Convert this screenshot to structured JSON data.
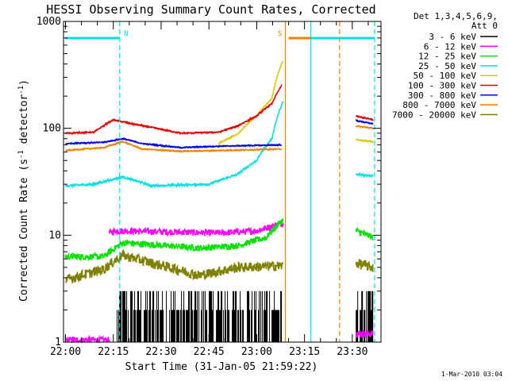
{
  "chart_data": {
    "type": "line",
    "title": "HESSI Observing Summary Count Rates, Corrected",
    "xlabel": "Start Time (31-Jan-05 21:59:22)",
    "ylabel_parts": [
      "Corrected Count Rate (s",
      "-1",
      " detector",
      "-1",
      ")"
    ],
    "footer": "1-Mar-2010 03:04",
    "y_scale": "log",
    "ylim": [
      1,
      1000
    ],
    "xlim": [
      "21:59:22",
      "23:39:00"
    ],
    "x_ticks": [
      "22:00",
      "22:15",
      "22:30",
      "22:45",
      "23:00",
      "23:15",
      "23:30"
    ],
    "y_ticks": [
      "1",
      "10",
      "100",
      "1000"
    ],
    "legend": {
      "header": [
        "Det 1,3,4,5,6,9,",
        "Att 0"
      ],
      "position": "top-right, outside plot",
      "entries": [
        {
          "label": "3 - 6 keV",
          "color": "#000000"
        },
        {
          "label": "6 - 12 keV",
          "color": "#ff00ff"
        },
        {
          "label": "12 - 25 keV",
          "color": "#00e000"
        },
        {
          "label": "25 - 50 keV",
          "color": "#00e0e0"
        },
        {
          "label": "50 - 100 keV",
          "color": "#d8c800"
        },
        {
          "label": "100 - 300 keV",
          "color": "#e00000"
        },
        {
          "label": "300 - 800 keV",
          "color": "#0000e0"
        },
        {
          "label": "800 - 7000 keV",
          "color": "#f08000"
        },
        {
          "label": "7000 - 20000 keV",
          "color": "#808000"
        }
      ]
    },
    "annotations": [
      {
        "label": "N",
        "color": "#00e0e0",
        "x_range": [
          "22:00",
          "22:17"
        ]
      },
      {
        "label": "S",
        "color": "#f08000",
        "x_range": [
          "23:10",
          "23:26"
        ]
      },
      {
        "label": "",
        "color": "#00e0e0",
        "x_range": [
          "23:17",
          "23:37"
        ]
      }
    ],
    "markers": [
      {
        "x": "22:17",
        "style": "dashed",
        "color": "#00e0e0"
      },
      {
        "x": "23:09",
        "style": "solid",
        "color": "#f08000"
      },
      {
        "x": "23:17",
        "style": "solid",
        "color": "#00e0e0"
      },
      {
        "x": "23:26",
        "style": "dashed",
        "color": "#f08000"
      },
      {
        "x": "23:37",
        "style": "dashed",
        "color": "#00e0e0"
      }
    ],
    "gap": [
      "23:09",
      "23:31"
    ],
    "series": [
      {
        "name": "3 - 6 keV",
        "color": "#000000",
        "noise": 0.9,
        "segments": [
          {
            "x": [
              22.27,
              22.5,
              22.85,
              23.13
            ],
            "y": [
              1.8,
              1.5,
              1.6,
              2.2
            ]
          },
          {
            "x": [
              23.52,
              23.61
            ],
            "y": [
              1.3,
              1.3
            ]
          }
        ]
      },
      {
        "name": "6 - 12 keV",
        "color": "#ff00ff",
        "noise": 0.07,
        "segments": [
          {
            "x": [
              22.0,
              22.23
            ],
            "y": [
              1.05,
              1.05
            ]
          },
          {
            "x": [
              22.23,
              22.26,
              22.5,
              22.8,
              23.0,
              23.14
            ],
            "y": [
              10.5,
              11,
              10.8,
              10.5,
              11,
              13
            ]
          },
          {
            "x": [
              23.52,
              23.61
            ],
            "y": [
              1.2,
              1.2
            ]
          }
        ]
      },
      {
        "name": "12 - 25 keV",
        "color": "#00e000",
        "noise": 0.07,
        "segments": [
          {
            "x": [
              22.0,
              22.2,
              22.3,
              22.7,
              22.9,
              23.05,
              23.14
            ],
            "y": [
              6.3,
              6.3,
              8.5,
              7.6,
              8.0,
              9.5,
              14
            ]
          },
          {
            "x": [
              23.52,
              23.61
            ],
            "y": [
              11,
              9.5
            ]
          }
        ]
      },
      {
        "name": "25 - 50 keV",
        "color": "#00e0e0",
        "noise": 0.02,
        "segments": [
          {
            "x": [
              22.0,
              22.15,
              22.3,
              22.45,
              22.75,
              22.9,
              23.0,
              23.08,
              23.14
            ],
            "y": [
              29,
              30,
              35,
              29,
              30,
              37,
              50,
              80,
              180
            ]
          },
          {
            "x": [
              23.52,
              23.61
            ],
            "y": [
              37,
              36
            ]
          }
        ]
      },
      {
        "name": "50 - 100 keV",
        "color": "#d8c800",
        "noise": 0.01,
        "segments": [
          {
            "x": [
              22.8,
              22.9,
              23.0,
              23.08,
              23.14
            ],
            "y": [
              72,
              88,
              130,
              190,
              440
            ]
          },
          {
            "x": [
              23.52,
              23.61
            ],
            "y": [
              78,
              75
            ]
          }
        ]
      },
      {
        "name": "100 - 300 keV",
        "color": "#e00000",
        "noise": 0.012,
        "segments": [
          {
            "x": [
              22.0,
              22.15,
              22.25,
              22.35,
              22.6,
              22.8,
              22.9,
              23.0,
              23.08,
              23.13
            ],
            "y": [
              90,
              92,
              120,
              110,
              90,
              92,
              105,
              130,
              170,
              250
            ]
          },
          {
            "x": [
              23.52,
              23.61
            ],
            "y": [
              130,
              120
            ]
          }
        ]
      },
      {
        "name": "300 - 800 keV",
        "color": "#0000e0",
        "noise": 0.01,
        "segments": [
          {
            "x": [
              22.0,
              22.2,
              22.3,
              22.4,
              22.6,
              22.8,
              23.13
            ],
            "y": [
              72,
              74,
              80,
              72,
              66,
              68,
              70
            ]
          },
          {
            "x": [
              23.52,
              23.61
            ],
            "y": [
              118,
              110
            ]
          }
        ]
      },
      {
        "name": "800 - 7000 keV",
        "color": "#f08000",
        "noise": 0.01,
        "segments": [
          {
            "x": [
              22.0,
              22.2,
              22.3,
              22.4,
              22.6,
              22.8,
              23.13
            ],
            "y": [
              62,
              66,
              75,
              64,
              61,
              62,
              64
            ]
          },
          {
            "x": [
              23.52,
              23.61
            ],
            "y": [
              105,
              100
            ]
          }
        ]
      },
      {
        "name": "7000 - 20000 keV",
        "color": "#808000",
        "noise": 0.11,
        "segments": [
          {
            "x": [
              22.0,
              22.2,
              22.3,
              22.45,
              22.7,
              22.9,
              23.14
            ],
            "y": [
              3.8,
              4.8,
              6.5,
              5.5,
              4.2,
              5.0,
              5.2
            ]
          },
          {
            "x": [
              23.52,
              23.61
            ],
            "y": [
              5.5,
              5.0
            ]
          }
        ]
      }
    ]
  }
}
